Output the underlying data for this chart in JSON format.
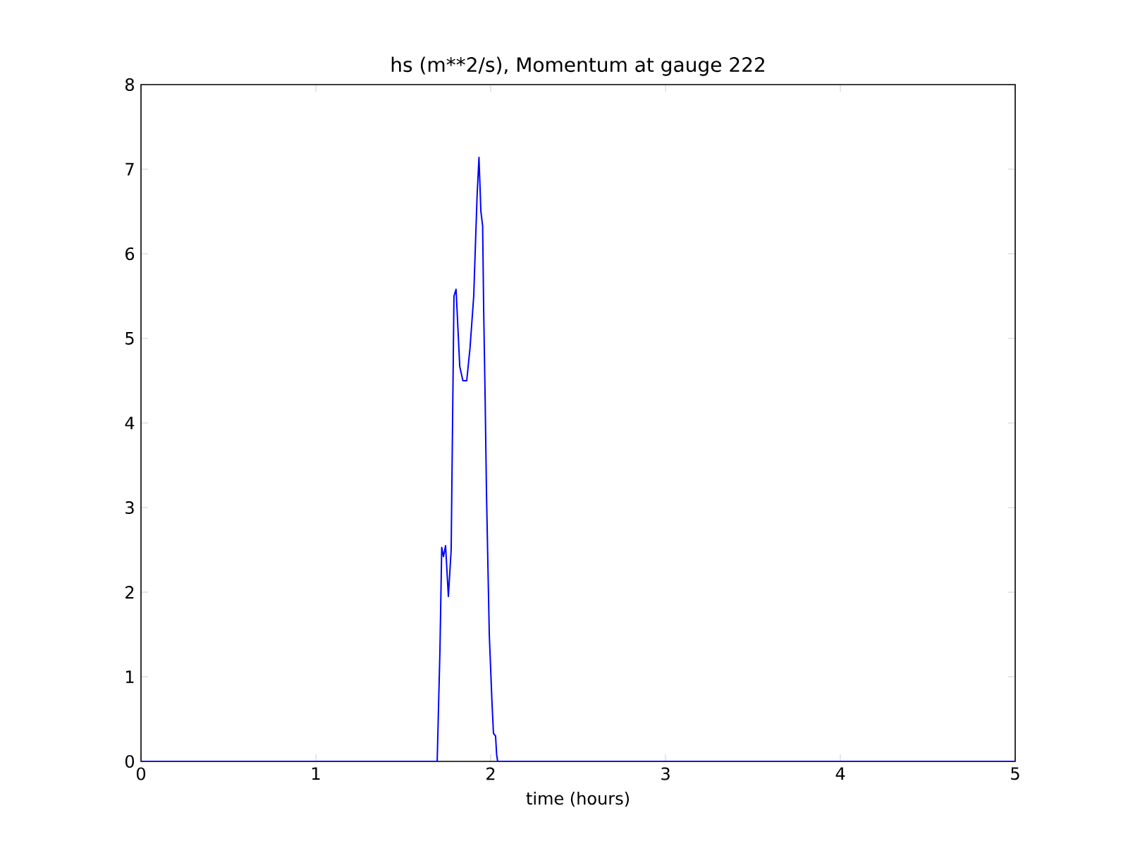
{
  "chart_data": {
    "type": "line",
    "title": "hs (m**2/s), Momentum at gauge 222",
    "xlabel": "time (hours)",
    "xlim": [
      0,
      5
    ],
    "ylim": [
      0,
      8
    ],
    "xticks": [
      0,
      1,
      2,
      3,
      4,
      5
    ],
    "yticks": [
      0,
      1,
      2,
      3,
      4,
      5,
      6,
      7,
      8
    ],
    "marker": "none",
    "line_style": "solid",
    "series": [
      {
        "color": "#0000ff",
        "x": [
          0,
          0.5,
          1.0,
          1.5,
          1.694,
          1.71,
          1.72,
          1.73,
          1.742,
          1.758,
          1.774,
          1.79,
          1.802,
          1.823,
          1.841,
          1.863,
          1.882,
          1.903,
          1.922,
          1.933,
          1.944,
          1.954,
          1.96,
          1.968,
          1.976,
          1.984,
          1.992,
          2.008,
          2.016,
          2.028,
          2.034,
          2.04,
          2.5,
          3.0,
          3.5,
          4.0,
          4.5,
          5.0
        ],
        "values": [
          0,
          0,
          0,
          0,
          0,
          1.33,
          2.53,
          2.42,
          2.55,
          1.95,
          2.5,
          5.5,
          5.58,
          4.67,
          4.5,
          4.5,
          4.89,
          5.5,
          6.67,
          7.14,
          6.5,
          6.33,
          5.33,
          4.33,
          3.17,
          2.33,
          1.5,
          0.67,
          0.33,
          0.3,
          0.08,
          0,
          0,
          0,
          0,
          0,
          0,
          0
        ]
      }
    ]
  }
}
